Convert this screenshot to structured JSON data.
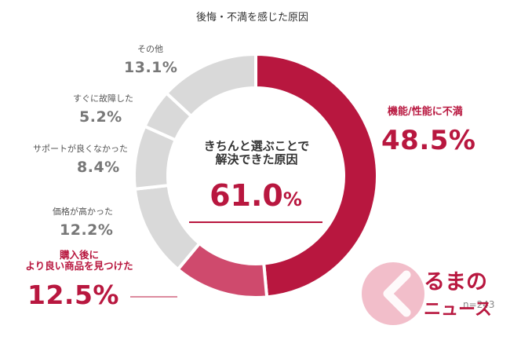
{
  "chart_data": {
    "type": "pie",
    "title": "後悔・不満を感じた原因",
    "slices": [
      {
        "label": "機能/性能に不満",
        "value": 48.5,
        "color": "#b8173f"
      },
      {
        "label": "購入後に\nより良い商品を見つけた",
        "value": 12.5,
        "color": "#cf4a6d"
      },
      {
        "label": "価格が高かった",
        "value": 12.2,
        "color": "#d9d9d9"
      },
      {
        "label": "サポートが良くなかった",
        "value": 8.4,
        "color": "#d9d9d9"
      },
      {
        "label": "すぐに故障した",
        "value": 5.2,
        "color": "#d9d9d9"
      },
      {
        "label": "その他",
        "value": 13.1,
        "color": "#d9d9d9"
      }
    ],
    "center": {
      "text": "きちんと選ぶことで\n解決できた原因",
      "value": "61.0",
      "unit": "%"
    },
    "n_label": "n=243"
  },
  "labels": {
    "s0_name": "機能/性能に不満",
    "s0_value": "48.5%",
    "s1_name": "購入後に\nより良い商品を見つけた",
    "s1_value": "12.5%",
    "s2_name": "価格が高かった",
    "s2_value": "12.2%",
    "s3_name": "サポートが良くなかった",
    "s3_value": "8.4%",
    "s4_name": "すぐに故障した",
    "s4_value": "5.2%",
    "s5_name": "その他",
    "s5_value": "13.1%"
  },
  "brand": {
    "name": "くるまのニュース",
    "line1": "るまの",
    "line2": "ニュース",
    "logo_color": "#e8889f"
  }
}
